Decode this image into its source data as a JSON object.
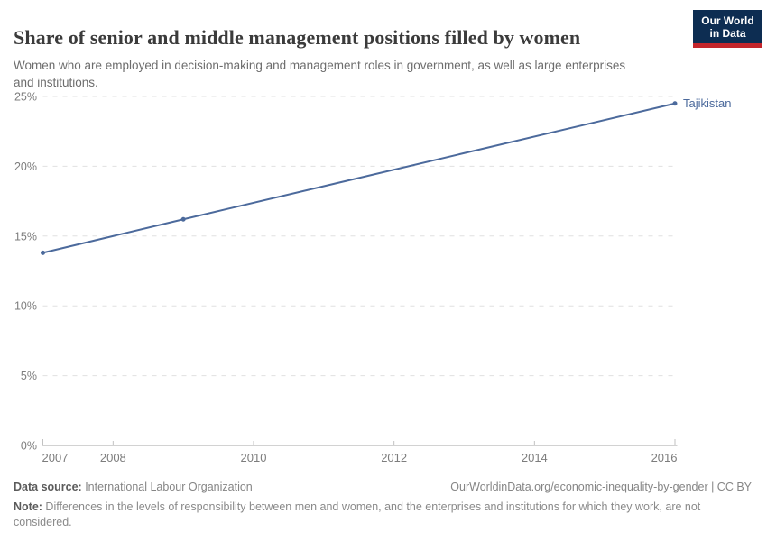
{
  "header": {
    "title": "Share of senior and middle management positions filled by women",
    "subtitle": "Women who are employed in decision-making and management roles in government, as well as large enterprises and institutions.",
    "logo": {
      "line1": "Our World",
      "line2": "in Data",
      "bg_color": "#0d2d52",
      "bar_color": "#c4252b"
    }
  },
  "chart_data": {
    "type": "line",
    "title": "Share of senior and middle management positions filled by women",
    "xlabel": "",
    "ylabel": "",
    "unit": "%",
    "xlim": [
      2007,
      2016
    ],
    "ylim": [
      0,
      25
    ],
    "grid": "horizontal-dashed",
    "legend_position": "end-of-line-label",
    "series": [
      {
        "name": "Tajikistan",
        "color": "#4c6a9c",
        "points": [
          {
            "x": 2007,
            "y": 13.8
          },
          {
            "x": 2009,
            "y": 16.2
          },
          {
            "x": 2016,
            "y": 24.5
          }
        ]
      }
    ],
    "yticks": [
      {
        "value": 0,
        "label": "0%"
      },
      {
        "value": 5,
        "label": "5%"
      },
      {
        "value": 10,
        "label": "10%"
      },
      {
        "value": 15,
        "label": "15%"
      },
      {
        "value": 20,
        "label": "20%"
      },
      {
        "value": 25,
        "label": "25%"
      }
    ],
    "xticks": [
      {
        "value": 2007,
        "label": "2007"
      },
      {
        "value": 2008,
        "label": "2008"
      },
      {
        "value": 2010,
        "label": "2010"
      },
      {
        "value": 2012,
        "label": "2012"
      },
      {
        "value": 2014,
        "label": "2014"
      },
      {
        "value": 2016,
        "label": "2016"
      }
    ],
    "colors": {
      "gridline": "#e0e0e0",
      "axis_line": "#a5a5a5",
      "tick_mark": "#c2c2c2",
      "tick_label": "#7d7d7d"
    }
  },
  "footer": {
    "datasource_label": "Data source:",
    "datasource_value": " International Labour Organization",
    "link": "OurWorldinData.org/economic-inequality-by-gender | CC BY",
    "note_label": "Note:",
    "note_value": " Differences in the levels of responsibility between men and women, and the enterprises and institutions for which they work, are not considered."
  }
}
